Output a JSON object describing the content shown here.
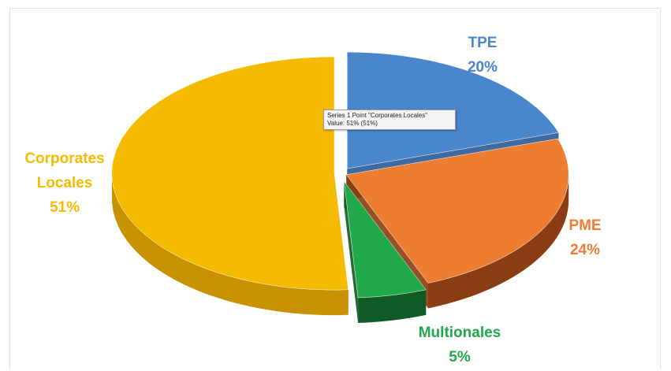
{
  "chart_data": {
    "type": "pie",
    "style": "3d-exploded",
    "categories": [
      "TPE",
      "PME",
      "Multionales",
      "Corporates Locales"
    ],
    "values": [
      20,
      24,
      5,
      51
    ],
    "value_labels": [
      "20%",
      "24%",
      "5%",
      "51%"
    ],
    "label_lines": [
      [
        "TPE",
        "20%"
      ],
      [
        "PME",
        "24%"
      ],
      [
        "Multionales",
        "5%"
      ],
      [
        "Corporates",
        "Locales",
        "51%"
      ]
    ],
    "colors": [
      "#4a86cc",
      "#ed7d31",
      "#20a84a",
      "#f5bb00"
    ],
    "side_colors": [
      "#2a5a96",
      "#8a3d12",
      "#0f5a25",
      "#c79100"
    ],
    "label_colors": [
      "#4a86cc",
      "#ed7d31",
      "#20a84a",
      "#f5bb00"
    ],
    "legend": "none"
  },
  "tooltip": {
    "line1": "Series 1 Point \"Corporates Locales\"",
    "line2": "Value: 51% (51%)"
  }
}
